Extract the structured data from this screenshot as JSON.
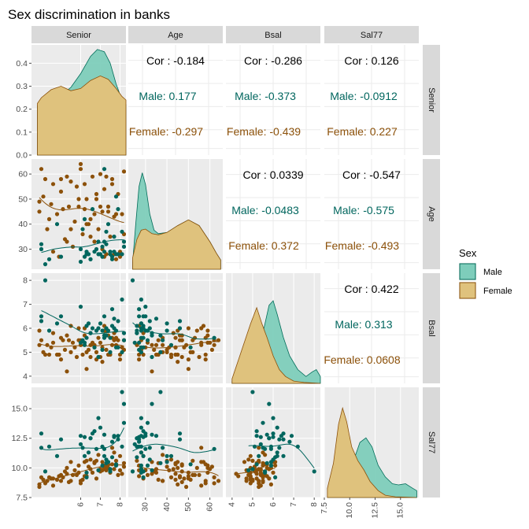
{
  "chart_data": {
    "type": "scatter-matrix",
    "title": "Sex discrimination in banks",
    "variables": [
      "Senior",
      "Age",
      "Bsal",
      "Sal77"
    ],
    "ranges": {
      "Senior": [
        3.5,
        8.3
      ],
      "Age": [
        22.0,
        66.0
      ],
      "Bsal": [
        3.7,
        8.3
      ],
      "Sal77": [
        7.5,
        16.8
      ]
    },
    "x_ticks": {
      "Senior": [
        6,
        7,
        8
      ],
      "Age": [
        30,
        40,
        50,
        60
      ],
      "Bsal": [
        4,
        5,
        6,
        7,
        8
      ],
      "Sal77": [
        7.5,
        10.0,
        12.5,
        15.0
      ]
    },
    "y_ticks": {
      "density": [
        0.0,
        0.1,
        0.2,
        0.3,
        0.4
      ],
      "Age": [
        30,
        40,
        50,
        60
      ],
      "Bsal": [
        4,
        5,
        6,
        7,
        8
      ],
      "Sal77": [
        7.5,
        10.0,
        12.5,
        15.0
      ]
    },
    "tick_labels": {
      "density": [
        "0.0",
        "0.1",
        "0.2",
        "0.3",
        "0.4"
      ],
      "Senior": [
        "6",
        "7",
        "8"
      ],
      "Age": [
        "30",
        "40",
        "50",
        "60"
      ],
      "Bsal": [
        "4",
        "5",
        "6",
        "7",
        "8"
      ],
      "Sal77": [
        "7.5",
        "10.0",
        "12.5",
        "15.0"
      ]
    },
    "density_ylim": [
      0.0,
      0.48
    ],
    "legend": {
      "title": "Sex",
      "entries": [
        {
          "name": "Male",
          "fill": "#7ecdbb",
          "stroke": "#016c59"
        },
        {
          "name": "Female",
          "fill": "#dfc27d",
          "stroke": "#8c510a"
        }
      ],
      "position": "right"
    },
    "colors": {
      "male_point": "#01665e",
      "female_point": "#8c510a",
      "male_fill": "#7ecdbb",
      "female_fill": "#dfc27d",
      "male_text": "#01665e",
      "female_text": "#8c510a",
      "panel_bg": "#ebebeb",
      "strip_bg": "#d9d9d9",
      "grid": "#ffffff"
    },
    "correlations": [
      {
        "pair": [
          "Senior",
          "Age"
        ],
        "overall": "Cor : -0.184",
        "male": "Male: 0.177",
        "female": "Female: -0.297"
      },
      {
        "pair": [
          "Senior",
          "Bsal"
        ],
        "overall": "Cor : -0.286",
        "male": "Male: -0.373",
        "female": "Female: -0.439"
      },
      {
        "pair": [
          "Senior",
          "Sal77"
        ],
        "overall": "Cor : 0.126",
        "male": "Male: -0.0912",
        "female": "Female: 0.227"
      },
      {
        "pair": [
          "Age",
          "Bsal"
        ],
        "overall": "Cor : 0.0339",
        "male": "Male: -0.0483",
        "female": "Female: 0.372"
      },
      {
        "pair": [
          "Age",
          "Sal77"
        ],
        "overall": "Cor : -0.547",
        "male": "Male: -0.575",
        "female": "Female: -0.493"
      },
      {
        "pair": [
          "Bsal",
          "Sal77"
        ],
        "overall": "Cor : 0.422",
        "male": "Male: 0.313",
        "female": "Female: 0.0608"
      }
    ],
    "densities": {
      "Senior": {
        "male": [
          [
            3.8,
            0.0
          ],
          [
            3.8,
            0.215
          ],
          [
            4.0,
            0.23
          ],
          [
            4.5,
            0.245
          ],
          [
            5.0,
            0.26
          ],
          [
            5.5,
            0.295
          ],
          [
            6.0,
            0.355
          ],
          [
            6.5,
            0.43
          ],
          [
            6.85,
            0.46
          ],
          [
            7.2,
            0.45
          ],
          [
            7.5,
            0.4
          ],
          [
            7.8,
            0.31
          ],
          [
            8.1,
            0.24
          ],
          [
            8.3,
            0.22
          ],
          [
            8.3,
            0.0
          ]
        ],
        "female": [
          [
            3.8,
            0.0
          ],
          [
            3.8,
            0.225
          ],
          [
            4.0,
            0.25
          ],
          [
            4.5,
            0.285
          ],
          [
            5.0,
            0.3
          ],
          [
            5.5,
            0.28
          ],
          [
            6.0,
            0.29
          ],
          [
            6.5,
            0.325
          ],
          [
            7.0,
            0.345
          ],
          [
            7.4,
            0.33
          ],
          [
            7.8,
            0.29
          ],
          [
            8.1,
            0.255
          ],
          [
            8.3,
            0.24
          ],
          [
            8.3,
            0.0
          ]
        ]
      },
      "Age": {
        "male": [
          [
            24,
            0.0
          ],
          [
            24,
            0.03
          ],
          [
            25.5,
            0.2
          ],
          [
            27,
            0.36
          ],
          [
            28.5,
            0.42
          ],
          [
            30,
            0.37
          ],
          [
            32,
            0.24
          ],
          [
            34,
            0.17
          ],
          [
            36,
            0.155
          ],
          [
            40,
            0.16
          ],
          [
            45,
            0.19
          ],
          [
            50,
            0.215
          ],
          [
            55,
            0.19
          ],
          [
            60,
            0.12
          ],
          [
            63,
            0.07
          ],
          [
            65,
            0.04
          ],
          [
            65,
            0.0
          ]
        ],
        "female": [
          [
            24,
            0.0
          ],
          [
            24,
            0.05
          ],
          [
            26,
            0.13
          ],
          [
            28,
            0.17
          ],
          [
            30,
            0.175
          ],
          [
            33,
            0.155
          ],
          [
            36,
            0.15
          ],
          [
            40,
            0.16
          ],
          [
            45,
            0.19
          ],
          [
            50,
            0.215
          ],
          [
            55,
            0.19
          ],
          [
            60,
            0.12
          ],
          [
            63,
            0.07
          ],
          [
            65,
            0.04
          ],
          [
            65,
            0.0
          ]
        ]
      },
      "Bsal": {
        "male": [
          [
            4.0,
            0.0
          ],
          [
            4.0,
            0.01
          ],
          [
            4.5,
            0.04
          ],
          [
            5.0,
            0.1
          ],
          [
            5.5,
            0.22
          ],
          [
            5.8,
            0.34
          ],
          [
            6.0,
            0.36
          ],
          [
            6.2,
            0.3
          ],
          [
            6.5,
            0.2
          ],
          [
            6.8,
            0.12
          ],
          [
            7.2,
            0.06
          ],
          [
            7.6,
            0.03
          ],
          [
            7.9,
            0.05
          ],
          [
            8.1,
            0.06
          ],
          [
            8.3,
            0.03
          ],
          [
            8.3,
            0.0
          ]
        ],
        "female": [
          [
            4.0,
            0.0
          ],
          [
            4.0,
            0.02
          ],
          [
            4.3,
            0.1
          ],
          [
            4.6,
            0.18
          ],
          [
            4.9,
            0.26
          ],
          [
            5.2,
            0.33
          ],
          [
            5.45,
            0.26
          ],
          [
            5.7,
            0.2
          ],
          [
            6.0,
            0.12
          ],
          [
            6.3,
            0.06
          ],
          [
            6.6,
            0.03
          ],
          [
            7.0,
            0.01
          ],
          [
            7.5,
            0.004
          ],
          [
            8.3,
            0.0
          ]
        ]
      },
      "Sal77": {
        "male": [
          [
            7.8,
            0.0
          ],
          [
            7.8,
            0.02
          ],
          [
            8.5,
            0.06
          ],
          [
            9.5,
            0.1
          ],
          [
            10.3,
            0.15
          ],
          [
            11.0,
            0.24
          ],
          [
            11.6,
            0.26
          ],
          [
            12.2,
            0.22
          ],
          [
            12.8,
            0.14
          ],
          [
            13.5,
            0.09
          ],
          [
            14.2,
            0.06
          ],
          [
            14.8,
            0.055
          ],
          [
            15.5,
            0.06
          ],
          [
            16.2,
            0.04
          ],
          [
            16.6,
            0.03
          ],
          [
            16.6,
            0.0
          ]
        ],
        "female": [
          [
            7.8,
            0.0
          ],
          [
            7.8,
            0.04
          ],
          [
            8.4,
            0.15
          ],
          [
            8.9,
            0.32
          ],
          [
            9.3,
            0.39
          ],
          [
            9.7,
            0.33
          ],
          [
            10.2,
            0.22
          ],
          [
            10.8,
            0.16
          ],
          [
            11.4,
            0.12
          ],
          [
            12.0,
            0.07
          ],
          [
            12.8,
            0.03
          ],
          [
            13.5,
            0.01
          ],
          [
            14.5,
            0.003
          ],
          [
            16.6,
            0.0
          ]
        ]
      }
    },
    "points": {
      "Male": [
        [
          6.2,
          27,
          5.4,
          12.6
        ],
        [
          6.4,
          28,
          6.2,
          11.3
        ],
        [
          6.5,
          26,
          5.8,
          12.5
        ],
        [
          6.8,
          30,
          5.9,
          11.6
        ],
        [
          6.9,
          33,
          4.8,
          9.8
        ],
        [
          7.0,
          28,
          6.2,
          13.4
        ],
        [
          7.1,
          27,
          5.1,
          11.8
        ],
        [
          7.2,
          29,
          6.5,
          11.0
        ],
        [
          7.3,
          37,
          5.7,
          10.4
        ],
        [
          7.4,
          40,
          5.9,
          10.5
        ],
        [
          7.5,
          28,
          5.0,
          9.9
        ],
        [
          7.6,
          26,
          6.1,
          10.9
        ],
        [
          7.7,
          35,
          6.4,
          12.7
        ],
        [
          7.8,
          51,
          5.2,
          10.3
        ],
        [
          7.9,
          46,
          6.3,
          12.4
        ],
        [
          8.1,
          28,
          7.2,
          11.8
        ],
        [
          8.2,
          33,
          5.8,
          15.4
        ],
        [
          8.2,
          31,
          5.5,
          13.8
        ],
        [
          6.0,
          30,
          6.9,
          12.7
        ],
        [
          6.2,
          42,
          5.3,
          11.0
        ],
        [
          6.6,
          46,
          6.0,
          12.9
        ],
        [
          6.9,
          28,
          6.0,
          14.2
        ],
        [
          6.3,
          29,
          6.1,
          9.2
        ],
        [
          7.5,
          29,
          5.6,
          9.7
        ],
        [
          7.1,
          31,
          5.9,
          10.2
        ],
        [
          6.7,
          29,
          5.2,
          13.1
        ],
        [
          7.2,
          33,
          5.7,
          12.8
        ],
        [
          6.5,
          26,
          5.8,
          12.5
        ],
        [
          5.0,
          27,
          6.5,
          12.4
        ],
        [
          4.0,
          30,
          6.5,
          12.9
        ],
        [
          4.0,
          32,
          6.3,
          11.7
        ],
        [
          4.4,
          26,
          5.9,
          11.8
        ],
        [
          4.2,
          24,
          8.0,
          9.7
        ],
        [
          7.7,
          29,
          6.0,
          12.6
        ],
        [
          7.2,
          62,
          5.6,
          11.6
        ],
        [
          7.9,
          28,
          5.2,
          12.7
        ],
        [
          6.1,
          38,
          5.5,
          11.7
        ],
        [
          8.1,
          37,
          5.0,
          16.4
        ],
        [
          7.3,
          32,
          6.0,
          10.7
        ],
        [
          7.8,
          28,
          5.9,
          10.2
        ],
        [
          7.6,
          27,
          6.8,
          12.2
        ],
        [
          4.8,
          40,
          6.2,
          11.0
        ],
        [
          6.0,
          25,
          5.4,
          12.0
        ],
        [
          6.3,
          28,
          5.6,
          9.6
        ]
      ],
      "Female": [
        [
          3.9,
          49,
          5.3,
          8.4
        ],
        [
          4.0,
          62,
          5.5,
          9.2
        ],
        [
          4.2,
          58,
          4.9,
          8.7
        ],
        [
          4.5,
          48,
          5.2,
          9.1
        ],
        [
          4.6,
          56,
          5.4,
          8.5
        ],
        [
          4.8,
          44,
          4.9,
          9.0
        ],
        [
          5.0,
          53,
          5.6,
          9.4
        ],
        [
          5.1,
          46,
          5.5,
          9.2
        ],
        [
          5.3,
          59,
          5.7,
          10.0
        ],
        [
          5.5,
          38,
          5.0,
          8.9
        ],
        [
          5.7,
          41,
          5.2,
          9.8
        ],
        [
          5.8,
          55,
          4.8,
          9.4
        ],
        [
          5.9,
          47,
          5.5,
          10.2
        ],
        [
          6.0,
          62,
          5.3,
          8.7
        ],
        [
          6.1,
          36,
          4.9,
          9.0
        ],
        [
          6.2,
          56,
          6.0,
          10.5
        ],
        [
          6.3,
          50,
          4.3,
          9.3
        ],
        [
          6.5,
          42,
          4.8,
          10.7
        ],
        [
          6.6,
          59,
          5.4,
          9.6
        ],
        [
          6.7,
          44,
          5.2,
          10.4
        ],
        [
          6.8,
          52,
          5.0,
          10.6
        ],
        [
          6.9,
          38,
          5.6,
          11.1
        ],
        [
          7.0,
          60,
          5.4,
          9.9
        ],
        [
          7.1,
          45,
          4.6,
          10.5
        ],
        [
          7.2,
          54,
          5.9,
          10.0
        ],
        [
          7.3,
          28,
          5.1,
          9.8
        ],
        [
          7.4,
          47,
          5.7,
          10.3
        ],
        [
          7.5,
          35,
          4.9,
          9.6
        ],
        [
          7.6,
          58,
          5.6,
          10.3
        ],
        [
          7.7,
          43,
          5.8,
          9.9
        ],
        [
          7.8,
          26,
          5.3,
          10.6
        ],
        [
          7.9,
          52,
          5.5,
          9.4
        ],
        [
          8.0,
          29,
          4.9,
          11.0
        ],
        [
          8.1,
          44,
          5.2,
          9.5
        ],
        [
          8.2,
          61,
          5.1,
          10.1
        ],
        [
          3.9,
          45,
          5.9,
          8.6
        ],
        [
          4.1,
          51,
          5.0,
          9.0
        ],
        [
          4.3,
          38,
          5.3,
          8.9
        ],
        [
          4.6,
          29,
          5.8,
          9.1
        ],
        [
          4.9,
          27,
          4.9,
          9.3
        ],
        [
          5.2,
          34,
          5.1,
          9.7
        ],
        [
          5.4,
          47,
          5.5,
          8.8
        ],
        [
          5.6,
          31,
          5.4,
          9.4
        ],
        [
          5.9,
          50,
          6.0,
          9.6
        ],
        [
          6.2,
          46,
          5.7,
          9.3
        ],
        [
          6.4,
          40,
          5.1,
          10.1
        ],
        [
          6.7,
          33,
          5.3,
          10.5
        ],
        [
          7.0,
          47,
          4.8,
          9.7
        ],
        [
          7.2,
          27,
          6.1,
          10.2
        ],
        [
          7.4,
          45,
          4.9,
          10.0
        ],
        [
          7.6,
          56,
          5.3,
          11.7
        ],
        [
          7.8,
          44,
          5.6,
          10.3
        ],
        [
          8.0,
          27,
          4.7,
          9.8
        ],
        [
          8.2,
          36,
          5.5,
          10.4
        ],
        [
          6.0,
          64,
          5.5,
          8.9
        ],
        [
          6.5,
          35,
          5.3,
          9.9
        ],
        [
          7.1,
          30,
          5.2,
          9.8
        ],
        [
          5.5,
          57,
          6.1,
          10.5
        ],
        [
          4.4,
          42,
          4.9,
          9.2
        ],
        [
          5.0,
          58,
          4.7,
          8.9
        ],
        [
          6.8,
          50,
          4.7,
          9.1
        ],
        [
          7.3,
          59,
          5.9,
          10.2
        ],
        [
          7.7,
          28,
          5.5,
          11.3
        ],
        [
          5.3,
          33,
          4.2,
          9.5
        ],
        [
          6.3,
          40,
          5.0,
          10.6
        ]
      ]
    }
  }
}
